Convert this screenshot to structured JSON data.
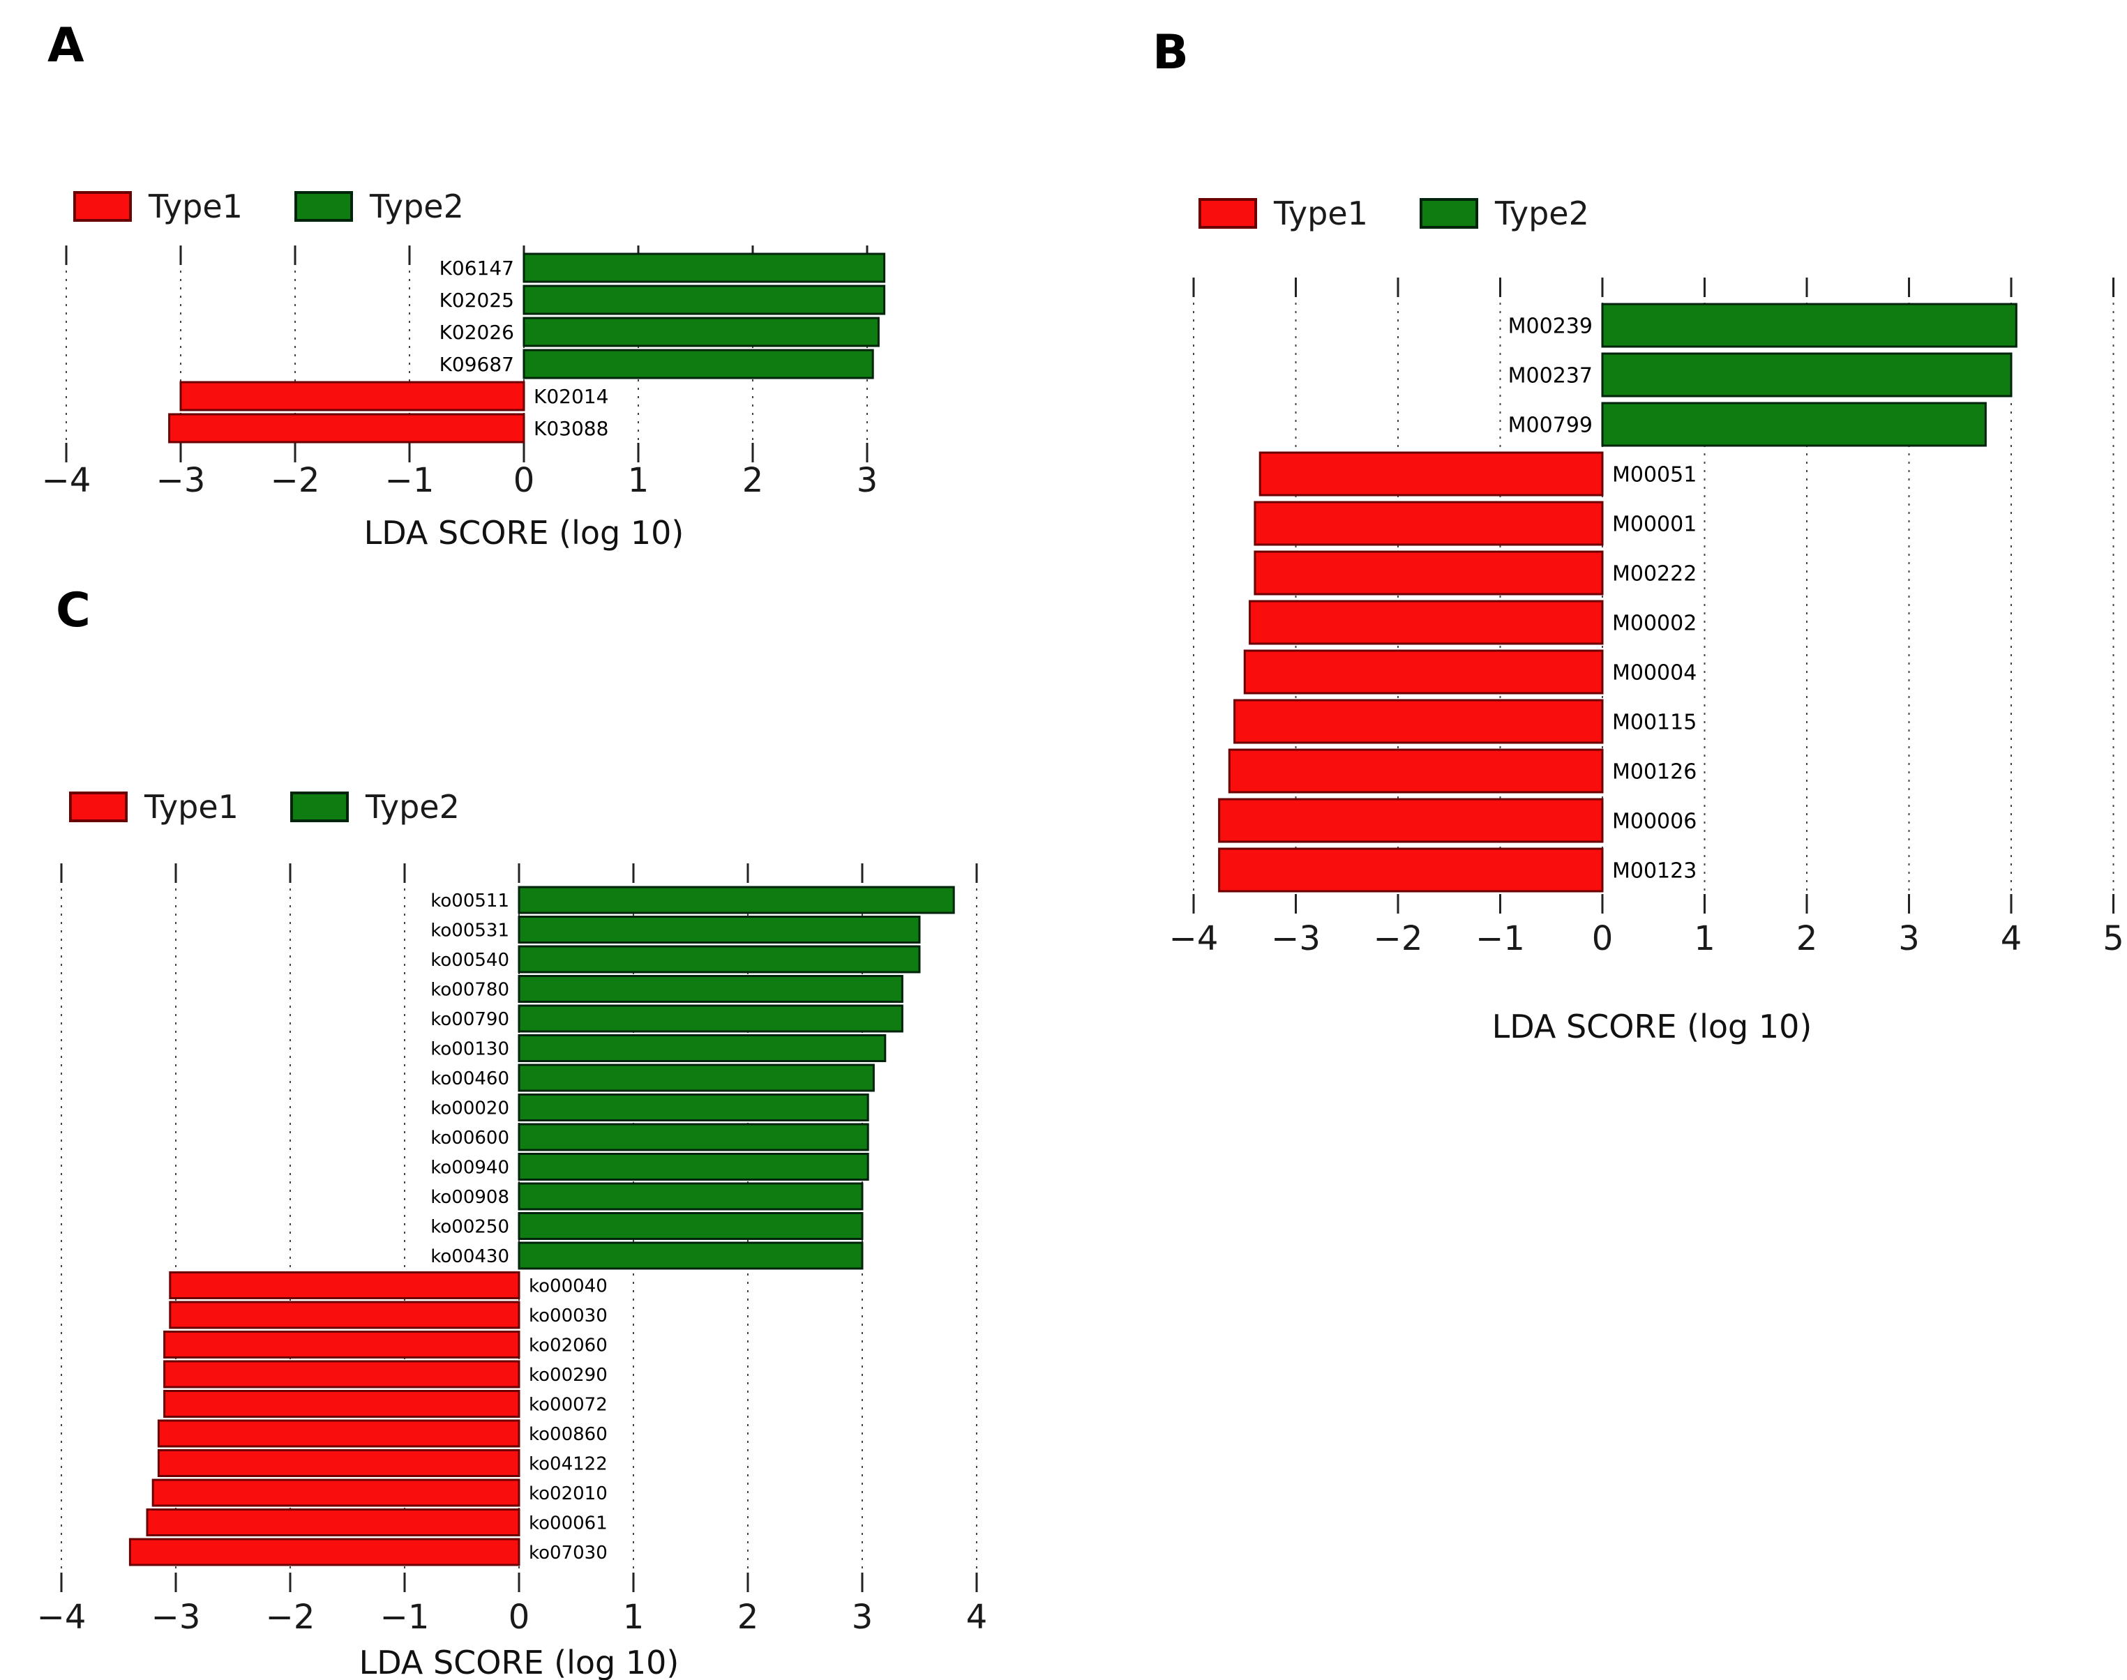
{
  "figure": {
    "background": "#ffffff"
  },
  "legend": {
    "type1_label": "Type1",
    "type2_label": "Type2"
  },
  "colors": {
    "type1_fill": "#f90d0d",
    "type1_edge": "#6b0000",
    "type2_fill": "#0e7c10",
    "type2_edge": "#00230b",
    "grid": "#444444",
    "tick": "#222222",
    "text": "#000000",
    "axis_text": "#1a1a1a"
  },
  "chart_data": [
    {
      "panel": "A",
      "type": "bar",
      "orientation": "horizontal",
      "title": "LDA SCORE (log 10)",
      "xlabel": "LDA SCORE (log 10)",
      "xlim": [
        -4,
        3
      ],
      "xticks": [
        -4,
        -3,
        -2,
        -1,
        0,
        1,
        2,
        3
      ],
      "xtick_labels": [
        "−4",
        "−3",
        "−2",
        "−1",
        "0",
        "1",
        "2",
        "3"
      ],
      "grid": "dotted-vertical",
      "legend_position": "top-left",
      "bars": [
        {
          "label": "K06147",
          "value": 3.15,
          "group": "Type2"
        },
        {
          "label": "K02025",
          "value": 3.15,
          "group": "Type2"
        },
        {
          "label": "K02026",
          "value": 3.1,
          "group": "Type2"
        },
        {
          "label": "K09687",
          "value": 3.05,
          "group": "Type2"
        },
        {
          "label": "K02014",
          "value": -3.0,
          "group": "Type1"
        },
        {
          "label": "K03088",
          "value": -3.1,
          "group": "Type1"
        }
      ]
    },
    {
      "panel": "B",
      "type": "bar",
      "orientation": "horizontal",
      "title": "LDA SCORE (log 10)",
      "xlabel": "LDA SCORE (log 10)",
      "xlim": [
        -4,
        5
      ],
      "xticks": [
        -4,
        -3,
        -2,
        -1,
        0,
        1,
        2,
        3,
        4,
        5
      ],
      "xtick_labels": [
        "−4",
        "−3",
        "−2",
        "−1",
        "0",
        "1",
        "2",
        "3",
        "4",
        "5"
      ],
      "grid": "dotted-vertical",
      "legend_position": "top-left",
      "bars": [
        {
          "label": "M00239",
          "value": 4.05,
          "group": "Type2"
        },
        {
          "label": "M00237",
          "value": 4.0,
          "group": "Type2"
        },
        {
          "label": "M00799",
          "value": 3.75,
          "group": "Type2"
        },
        {
          "label": "M00051",
          "value": -3.35,
          "group": "Type1"
        },
        {
          "label": "M00001",
          "value": -3.4,
          "group": "Type1"
        },
        {
          "label": "M00222",
          "value": -3.4,
          "group": "Type1"
        },
        {
          "label": "M00002",
          "value": -3.45,
          "group": "Type1"
        },
        {
          "label": "M00004",
          "value": -3.5,
          "group": "Type1"
        },
        {
          "label": "M00115",
          "value": -3.6,
          "group": "Type1"
        },
        {
          "label": "M00126",
          "value": -3.65,
          "group": "Type1"
        },
        {
          "label": "M00006",
          "value": -3.75,
          "group": "Type1"
        },
        {
          "label": "M00123",
          "value": -3.75,
          "group": "Type1"
        }
      ]
    },
    {
      "panel": "C",
      "type": "bar",
      "orientation": "horizontal",
      "title": "LDA SCORE (log 10)",
      "xlabel": "LDA SCORE (log 10)",
      "xlim": [
        -4,
        4
      ],
      "xticks": [
        -4,
        -3,
        -2,
        -1,
        0,
        1,
        2,
        3,
        4
      ],
      "xtick_labels": [
        "−4",
        "−3",
        "−2",
        "−1",
        "0",
        "1",
        "2",
        "3",
        "4"
      ],
      "grid": "dotted-vertical",
      "legend_position": "top-left",
      "bars": [
        {
          "label": "ko00511",
          "value": 3.8,
          "group": "Type2"
        },
        {
          "label": "ko00531",
          "value": 3.5,
          "group": "Type2"
        },
        {
          "label": "ko00540",
          "value": 3.5,
          "group": "Type2"
        },
        {
          "label": "ko00780",
          "value": 3.35,
          "group": "Type2"
        },
        {
          "label": "ko00790",
          "value": 3.35,
          "group": "Type2"
        },
        {
          "label": "ko00130",
          "value": 3.2,
          "group": "Type2"
        },
        {
          "label": "ko00460",
          "value": 3.1,
          "group": "Type2"
        },
        {
          "label": "ko00020",
          "value": 3.05,
          "group": "Type2"
        },
        {
          "label": "ko00600",
          "value": 3.05,
          "group": "Type2"
        },
        {
          "label": "ko00940",
          "value": 3.05,
          "group": "Type2"
        },
        {
          "label": "ko00908",
          "value": 3.0,
          "group": "Type2"
        },
        {
          "label": "ko00250",
          "value": 3.0,
          "group": "Type2"
        },
        {
          "label": "ko00430",
          "value": 3.0,
          "group": "Type2"
        },
        {
          "label": "ko00040",
          "value": -3.05,
          "group": "Type1"
        },
        {
          "label": "ko00030",
          "value": -3.05,
          "group": "Type1"
        },
        {
          "label": "ko02060",
          "value": -3.1,
          "group": "Type1"
        },
        {
          "label": "ko00290",
          "value": -3.1,
          "group": "Type1"
        },
        {
          "label": "ko00072",
          "value": -3.1,
          "group": "Type1"
        },
        {
          "label": "ko00860",
          "value": -3.15,
          "group": "Type1"
        },
        {
          "label": "ko04122",
          "value": -3.15,
          "group": "Type1"
        },
        {
          "label": "ko02010",
          "value": -3.2,
          "group": "Type1"
        },
        {
          "label": "ko00061",
          "value": -3.25,
          "group": "Type1"
        },
        {
          "label": "ko07030",
          "value": -3.4,
          "group": "Type1"
        }
      ]
    }
  ]
}
